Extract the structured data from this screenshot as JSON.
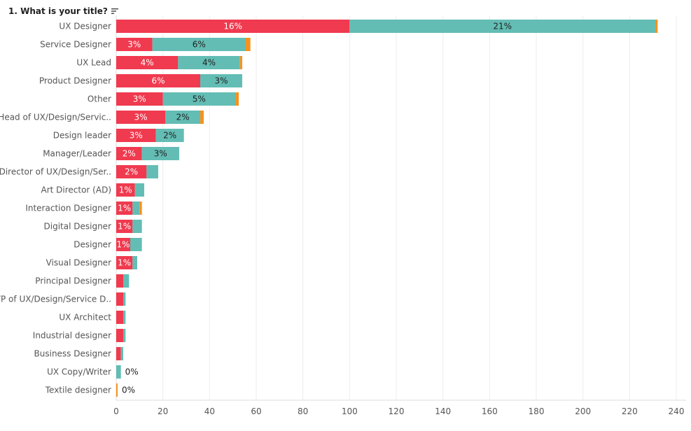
{
  "header": {
    "title": "1. What is your title?",
    "sort_icon": "sort-descending-icon"
  },
  "colors": {
    "red": "#F03A4F",
    "teal": "#63BDB4",
    "orange": "#F6921E",
    "grid": "#EEEEEE",
    "axis": "#DDDDDD"
  },
  "chart_data": {
    "type": "bar",
    "orientation": "horizontal",
    "stacked": true,
    "xlim": [
      0,
      240
    ],
    "x_ticks": [
      0,
      20,
      40,
      60,
      80,
      100,
      120,
      140,
      160,
      180,
      200,
      220,
      240
    ],
    "grid": true,
    "categories": [
      "UX Designer",
      "Service Designer",
      "UX Lead",
      "Product Designer",
      "Other",
      "Head of UX/Design/Servic..",
      "Design leader",
      "Manager/Leader",
      "Director of UX/Design/Ser..",
      "Art Director (AD)",
      "Interaction Designer",
      "Digital Designer",
      "Designer",
      "Visual Designer",
      "Principal Designer",
      "VP of UX/Design/Service D..",
      "UX Architect",
      "Industrial designer",
      "Business Designer",
      "UX Copy/Writer",
      "Textile designer"
    ],
    "series": [
      {
        "color": "red",
        "values": [
          100,
          15.5,
          26.5,
          36,
          20,
          21,
          17,
          11,
          13,
          8,
          7,
          7,
          6,
          7,
          3,
          3,
          3,
          3,
          2,
          0,
          0
        ],
        "labels": [
          "16%",
          "3%",
          "4%",
          "6%",
          "3%",
          "3%",
          "3%",
          "2%",
          "2%",
          "1%",
          "1%",
          "1%",
          "1%",
          "1%",
          "",
          "",
          "",
          "",
          "",
          "",
          ""
        ]
      },
      {
        "color": "teal",
        "values": [
          131,
          40,
          26.5,
          18,
          31,
          15,
          12,
          16,
          5,
          4,
          3,
          4,
          5,
          2,
          2.5,
          1,
          1,
          1,
          1,
          2,
          0
        ],
        "labels": [
          "21%",
          "6%",
          "4%",
          "3%",
          "5%",
          "2%",
          "2%",
          "3%",
          "",
          "",
          "",
          "",
          "",
          "",
          "",
          "",
          "",
          "",
          "",
          "0%",
          ""
        ]
      },
      {
        "color": "orange",
        "values": [
          1,
          2,
          1,
          0,
          1.5,
          1.5,
          0,
          0,
          0,
          0,
          1,
          0,
          0,
          0,
          0,
          0,
          0,
          0,
          0,
          0,
          0.6
        ],
        "labels": [
          "",
          "",
          "",
          "",
          "",
          "",
          "",
          "",
          "",
          "",
          "",
          "",
          "",
          "",
          "",
          "",
          "",
          "",
          "",
          "",
          "0%"
        ]
      }
    ]
  }
}
